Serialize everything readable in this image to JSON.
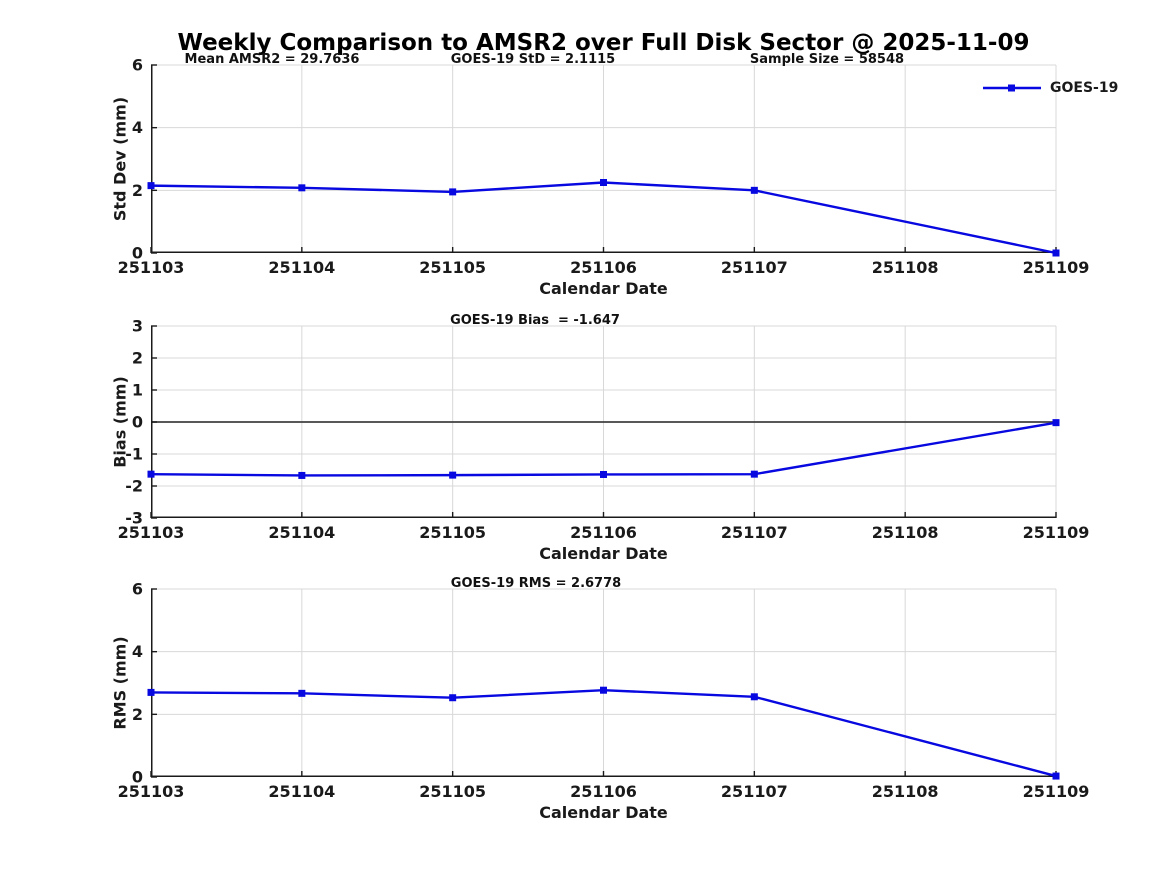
{
  "page": {
    "title": "Weekly Comparison to AMSR2 over Full Disk Sector @ 2025-11-09"
  },
  "legend": {
    "label": "GOES-19"
  },
  "colors": {
    "line": "#0808e0",
    "grid": "#d8d8d8",
    "axis": "#1a1a1a",
    "zero_line": "#404040",
    "text": "#1a1a1a"
  },
  "chart_data": [
    {
      "type": "line",
      "name": "std-dev",
      "annotations": [
        "Mean AMSR2 = 29.7636",
        "GOES-19 StD = 2.1115",
        "Sample Size = 58548"
      ],
      "xlabel": "Calendar Date",
      "ylabel": "Std Dev (mm)",
      "xlim": [
        251103,
        251109
      ],
      "ylim": [
        0,
        6
      ],
      "xticks": [
        251103,
        251104,
        251105,
        251106,
        251107,
        251108,
        251109
      ],
      "yticks": [
        0,
        2,
        4,
        6
      ],
      "grid": true,
      "zero_line": false,
      "legend_position": "top-right-outside",
      "series": [
        {
          "name": "GOES-19",
          "x": [
            251103,
            251104,
            251105,
            251106,
            251107,
            251109
          ],
          "y": [
            2.15,
            2.08,
            1.95,
            2.25,
            2.0,
            0.0
          ]
        }
      ]
    },
    {
      "type": "line",
      "name": "bias",
      "annotations": [
        "GOES-19 Bias  = -1.647"
      ],
      "xlabel": "Calendar Date",
      "ylabel": "Bias (mm)",
      "xlim": [
        251103,
        251109
      ],
      "ylim": [
        -3,
        3
      ],
      "xticks": [
        251103,
        251104,
        251105,
        251106,
        251107,
        251108,
        251109
      ],
      "yticks": [
        -3,
        -2,
        -1,
        0,
        1,
        2,
        3
      ],
      "grid": true,
      "zero_line": true,
      "series": [
        {
          "name": "GOES-19",
          "x": [
            251103,
            251104,
            251105,
            251106,
            251107,
            251109
          ],
          "y": [
            -1.63,
            -1.67,
            -1.66,
            -1.64,
            -1.63,
            -0.02
          ]
        }
      ]
    },
    {
      "type": "line",
      "name": "rms",
      "annotations": [
        "GOES-19 RMS = 2.6778"
      ],
      "xlabel": "Calendar Date",
      "ylabel": "RMS (mm)",
      "xlim": [
        251103,
        251109
      ],
      "ylim": [
        0,
        6
      ],
      "xticks": [
        251103,
        251104,
        251105,
        251106,
        251107,
        251108,
        251109
      ],
      "yticks": [
        0,
        2,
        4,
        6
      ],
      "grid": true,
      "zero_line": false,
      "series": [
        {
          "name": "GOES-19",
          "x": [
            251103,
            251104,
            251105,
            251106,
            251107,
            251109
          ],
          "y": [
            2.7,
            2.67,
            2.53,
            2.77,
            2.56,
            0.03
          ]
        }
      ]
    }
  ]
}
